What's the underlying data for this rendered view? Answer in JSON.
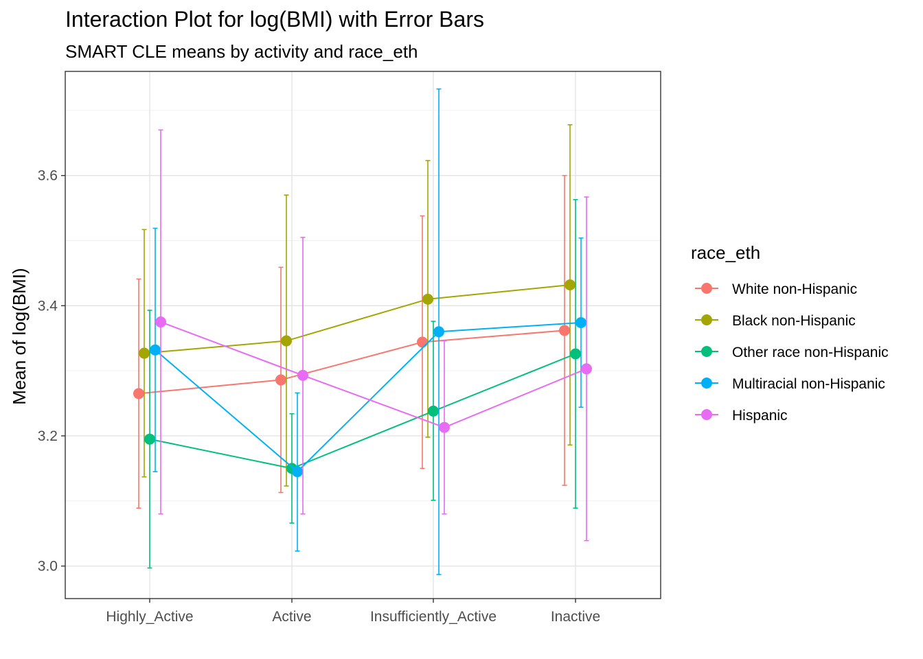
{
  "chart_data": {
    "type": "line",
    "title": "Interaction Plot for log(BMI) with Error Bars",
    "subtitle": "SMART CLE means by activity and race_eth",
    "xlabel": "",
    "ylabel": "Mean of log(BMI)",
    "categories": [
      "Highly_Active",
      "Active",
      "Insufficiently_Active",
      "Inactive"
    ],
    "ylim": [
      2.95,
      3.76
    ],
    "yticks": [
      3.0,
      3.2,
      3.4,
      3.6
    ],
    "ytick_labels": [
      "3.0",
      "3.2",
      "3.4",
      "3.6"
    ],
    "grid": true,
    "legend_title": "race_eth",
    "legend_position": "right",
    "series": [
      {
        "name": "White non-Hispanic",
        "color": "#F8766D",
        "values": [
          3.265,
          3.286,
          3.344,
          3.362
        ],
        "lower": [
          3.089,
          3.113,
          3.15,
          3.124
        ],
        "upper": [
          3.441,
          3.459,
          3.538,
          3.6
        ]
      },
      {
        "name": "Black non-Hispanic",
        "color": "#A3A500",
        "values": [
          3.327,
          3.346,
          3.41,
          3.432
        ],
        "lower": [
          3.137,
          3.123,
          3.198,
          3.186
        ],
        "upper": [
          3.517,
          3.57,
          3.623,
          3.678
        ]
      },
      {
        "name": "Other race non-Hispanic",
        "color": "#00BF7D",
        "values": [
          3.195,
          3.15,
          3.238,
          3.326
        ],
        "lower": [
          2.997,
          3.066,
          3.101,
          3.089
        ],
        "upper": [
          3.393,
          3.234,
          3.376,
          3.563
        ]
      },
      {
        "name": "Multiracial non-Hispanic",
        "color": "#00B0F6",
        "values": [
          3.332,
          3.145,
          3.36,
          3.374
        ],
        "lower": [
          3.145,
          3.023,
          2.987,
          3.244
        ],
        "upper": [
          3.519,
          3.266,
          3.733,
          3.504
        ]
      },
      {
        "name": "Hispanic",
        "color": "#E76BF3",
        "values": [
          3.375,
          3.293,
          3.213,
          3.303
        ],
        "lower": [
          3.08,
          3.08,
          3.08,
          3.039
        ],
        "upper": [
          3.67,
          3.505,
          3.346,
          3.567
        ]
      }
    ]
  }
}
